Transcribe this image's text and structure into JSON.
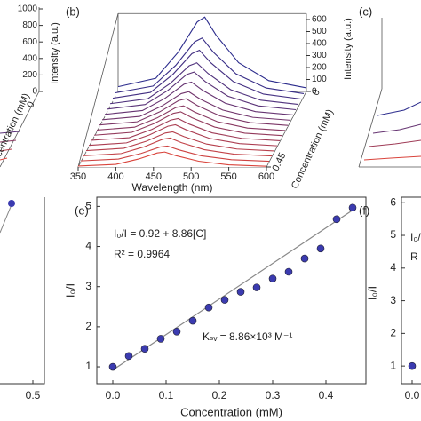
{
  "chart_data": [
    {
      "type": "line",
      "ylabel": "Intensity (a.u.)",
      "zlabel": "Concentration (mM)",
      "ylim": [
        0,
        1000
      ],
      "yticks": [
        0,
        200,
        400,
        600,
        800,
        1000
      ],
      "zticks": [
        0
      ]
    },
    {
      "type": "line",
      "label": "(b)",
      "xlabel": "Wavelength (nm)",
      "ylabel": "Intensity (a.u.)",
      "zlabel": "Concentration (mM)",
      "xlim": [
        350,
        600
      ],
      "xticks": [
        350,
        400,
        450,
        500,
        550,
        600
      ],
      "ylim": [
        0,
        650
      ],
      "yticks": [
        0,
        100,
        200,
        300,
        400,
        500,
        600
      ],
      "zlim": [
        0,
        0.45
      ],
      "zticks": [
        0,
        0.45
      ],
      "x": [
        350,
        400,
        430,
        455,
        465,
        480,
        510,
        550,
        600
      ],
      "z": [
        0,
        0.03,
        0.06,
        0.09,
        0.12,
        0.15,
        0.18,
        0.21,
        0.24,
        0.27,
        0.3,
        0.33,
        0.36,
        0.39,
        0.42,
        0.45
      ],
      "series": [
        {
          "color": "#2b2b8c",
          "values": [
            40,
            110,
            330,
            580,
            620,
            470,
            240,
            90,
            30
          ]
        },
        {
          "color": "#372d87",
          "values": [
            31,
            87,
            260,
            456,
            488,
            370,
            189,
            71,
            24
          ]
        },
        {
          "color": "#422e81",
          "values": [
            28,
            76,
            228,
            400,
            428,
            324,
            166,
            62,
            21
          ]
        },
        {
          "color": "#4e307c",
          "values": [
            24,
            65,
            194,
            341,
            365,
            276,
            141,
            53,
            18
          ]
        },
        {
          "color": "#593277",
          "values": [
            21,
            59,
            176,
            309,
            330,
            250,
            128,
            48,
            16
          ]
        },
        {
          "color": "#653371",
          "values": [
            19,
            51,
            153,
            270,
            288,
            219,
            112,
            42,
            14
          ]
        },
        {
          "color": "#71356c",
          "values": [
            16,
            44,
            133,
            234,
            250,
            189,
            97,
            36,
            12
          ]
        },
        {
          "color": "#7c3767",
          "values": [
            15,
            41,
            124,
            218,
            233,
            176,
            90,
            34,
            11
          ]
        },
        {
          "color": "#883861",
          "values": [
            14,
            38,
            115,
            202,
            216,
            164,
            84,
            31,
            10
          ]
        },
        {
          "color": "#933a5c",
          "values": [
            13,
            37,
            111,
            195,
            208,
            158,
            81,
            30,
            10
          ]
        },
        {
          "color": "#9f3c57",
          "values": [
            13,
            34,
            103,
            181,
            194,
            147,
            75,
            28,
            9
          ]
        },
        {
          "color": "#ab3d51",
          "values": [
            12,
            33,
            98,
            172,
            184,
            140,
            71,
            27,
            9
          ]
        },
        {
          "color": "#b63f4c",
          "values": [
            11,
            30,
            89,
            157,
            167,
            127,
            65,
            24,
            8
          ]
        },
        {
          "color": "#c24147",
          "values": [
            10,
            28,
            83,
            147,
            157,
            119,
            61,
            23,
            8
          ]
        },
        {
          "color": "#cd4241",
          "values": [
            9,
            24,
            71,
            124,
            133,
            101,
            51,
            19,
            6
          ]
        },
        {
          "color": "#d9443c",
          "values": [
            8,
            22,
            66,
            117,
            125,
            94,
            48,
            18,
            6
          ]
        }
      ]
    },
    {
      "type": "line",
      "label": "(c)"
    },
    {
      "type": "scatter",
      "xticks": [
        0.5
      ]
    },
    {
      "type": "scatter",
      "label": "(e)",
      "xlabel": "Concentration (mM)",
      "ylabel": "I₀/I",
      "x": [
        0,
        0.03,
        0.06,
        0.09,
        0.12,
        0.15,
        0.18,
        0.21,
        0.24,
        0.27,
        0.3,
        0.33,
        0.36,
        0.39,
        0.42,
        0.45
      ],
      "values": [
        1.0,
        1.27,
        1.45,
        1.7,
        1.88,
        2.15,
        2.48,
        2.67,
        2.87,
        2.98,
        3.2,
        3.37,
        3.7,
        3.95,
        4.68,
        4.97
      ],
      "color": "#3b3bb0",
      "fit": {
        "intercept": 0.92,
        "slope": 8.86
      },
      "annotations": [
        "I₀/I = 0.92 + 8.86[C]",
        "R² = 0.9964",
        "Kₛᵥ = 8.86×10³ M⁻¹"
      ],
      "xlim": [
        -0.03,
        0.475
      ],
      "xticks": [
        {
          "value": 0,
          "label": "0.0"
        },
        {
          "value": 0.1,
          "label": "0.1"
        },
        {
          "value": 0.2,
          "label": "0.2"
        },
        {
          "value": 0.3,
          "label": "0.3"
        },
        {
          "value": 0.4,
          "label": "0.4"
        }
      ],
      "ylim": [
        0.58,
        5.23
      ],
      "yticks": [
        1,
        2,
        3,
        4,
        5
      ]
    },
    {
      "type": "scatter",
      "label": "(f)",
      "ylabel": "I₀/I",
      "x": [
        0
      ],
      "values": [
        1
      ],
      "color": "#3b3bb0",
      "annotations": [
        "I₀/",
        "R"
      ],
      "ylim": [
        0.46,
        6.17
      ],
      "yticks": [
        1,
        2,
        3,
        4,
        5,
        6
      ],
      "xticks": [
        {
          "value": 0,
          "label": "0.0"
        }
      ]
    }
  ]
}
